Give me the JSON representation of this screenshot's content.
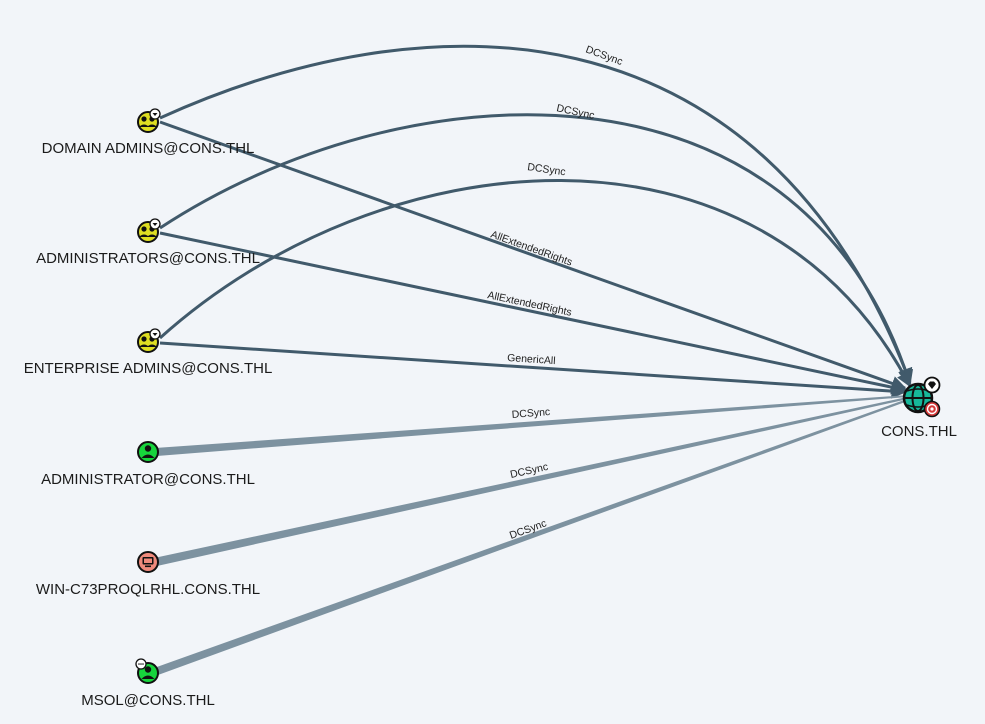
{
  "nodes": [
    {
      "id": "domain_admins",
      "label": "DOMAIN ADMINS@CONS.THL",
      "type": "group",
      "badge": "owned"
    },
    {
      "id": "administrators",
      "label": "ADMINISTRATORS@CONS.THL",
      "type": "group",
      "badge": "owned"
    },
    {
      "id": "enterprise_admins",
      "label": "ENTERPRISE ADMINS@CONS.THL",
      "type": "group",
      "badge": "owned"
    },
    {
      "id": "administrator",
      "label": "ADMINISTRATOR@CONS.THL",
      "type": "user",
      "badge": ""
    },
    {
      "id": "win_host",
      "label": "WIN-C73PROQLRHL.CONS.THL",
      "type": "computer",
      "badge": ""
    },
    {
      "id": "msol",
      "label": "MSOL@CONS.THL",
      "type": "user",
      "badge": "chat"
    },
    {
      "id": "domain",
      "label": "CONS.THL",
      "type": "domain",
      "badge": "high-value-target"
    }
  ],
  "edges": [
    {
      "from": "domain_admins",
      "to": "domain",
      "label": "DCSync",
      "style": "arc"
    },
    {
      "from": "administrators",
      "to": "domain",
      "label": "DCSync",
      "style": "arc"
    },
    {
      "from": "enterprise_admins",
      "to": "domain",
      "label": "DCSync",
      "style": "arc"
    },
    {
      "from": "domain_admins",
      "to": "domain",
      "label": "AllExtendedRights",
      "style": "straight"
    },
    {
      "from": "administrators",
      "to": "domain",
      "label": "AllExtendedRights",
      "style": "straight"
    },
    {
      "from": "enterprise_admins",
      "to": "domain",
      "label": "GenericAll",
      "style": "straight"
    },
    {
      "from": "administrator",
      "to": "domain",
      "label": "DCSync",
      "style": "tapered"
    },
    {
      "from": "win_host",
      "to": "domain",
      "label": "DCSync",
      "style": "tapered"
    },
    {
      "from": "msol",
      "to": "domain",
      "label": "DCSync",
      "style": "tapered"
    }
  ],
  "colors": {
    "background": "#f2f5f9",
    "edge_dark": "#415a6b",
    "edge_light": "#7d92a0",
    "group_fill": "#dede22",
    "user_fill": "#17d43c",
    "computer_fill": "#f08a7c",
    "domain_fill": "#17b89a",
    "target_badge": "#d63a3a"
  }
}
